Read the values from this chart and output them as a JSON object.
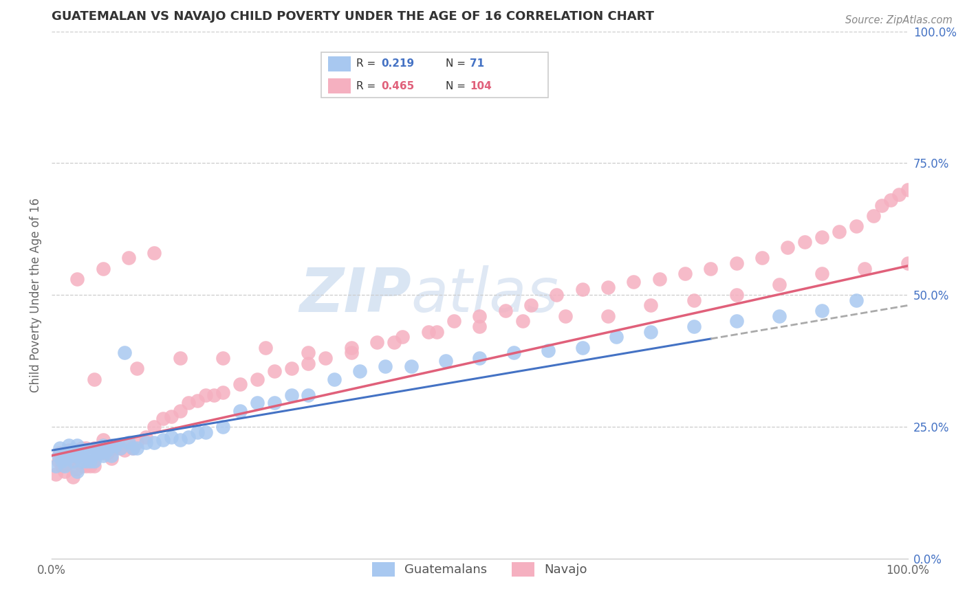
{
  "title": "GUATEMALAN VS NAVAJO CHILD POVERTY UNDER THE AGE OF 16 CORRELATION CHART",
  "source": "Source: ZipAtlas.com",
  "ylabel": "Child Poverty Under the Age of 16",
  "xlim": [
    0.0,
    1.0
  ],
  "ylim": [
    0.0,
    1.0
  ],
  "guatemalan_color": "#a8c8f0",
  "navajo_color": "#f5b0c0",
  "guatemalan_line_color": "#4472c4",
  "navajo_line_color": "#e0607a",
  "dashed_line_color": "#aaaaaa",
  "watermark_color": "#d0dff0",
  "legend_R_guatemalan": "0.219",
  "legend_N_guatemalan": "71",
  "legend_R_navajo": "0.465",
  "legend_N_navajo": "104",
  "title_fontsize": 13,
  "tick_fontsize": 12,
  "ylabel_fontsize": 12,
  "guatemalan_points_x": [
    0.005,
    0.008,
    0.01,
    0.012,
    0.015,
    0.015,
    0.018,
    0.02,
    0.02,
    0.022,
    0.025,
    0.025,
    0.028,
    0.03,
    0.03,
    0.03,
    0.032,
    0.035,
    0.035,
    0.038,
    0.04,
    0.04,
    0.042,
    0.045,
    0.045,
    0.048,
    0.05,
    0.05,
    0.055,
    0.058,
    0.06,
    0.06,
    0.065,
    0.07,
    0.07,
    0.075,
    0.08,
    0.085,
    0.09,
    0.095,
    0.1,
    0.11,
    0.12,
    0.13,
    0.14,
    0.15,
    0.16,
    0.17,
    0.18,
    0.2,
    0.22,
    0.24,
    0.26,
    0.28,
    0.3,
    0.33,
    0.36,
    0.39,
    0.42,
    0.46,
    0.5,
    0.54,
    0.58,
    0.62,
    0.66,
    0.7,
    0.75,
    0.8,
    0.85,
    0.9,
    0.94
  ],
  "guatemalan_points_y": [
    0.175,
    0.195,
    0.21,
    0.185,
    0.175,
    0.2,
    0.19,
    0.2,
    0.215,
    0.195,
    0.185,
    0.205,
    0.195,
    0.165,
    0.195,
    0.215,
    0.195,
    0.185,
    0.205,
    0.195,
    0.185,
    0.205,
    0.195,
    0.185,
    0.205,
    0.195,
    0.185,
    0.205,
    0.2,
    0.2,
    0.195,
    0.215,
    0.205,
    0.195,
    0.215,
    0.215,
    0.21,
    0.39,
    0.22,
    0.21,
    0.21,
    0.22,
    0.22,
    0.225,
    0.23,
    0.225,
    0.23,
    0.24,
    0.24,
    0.25,
    0.28,
    0.295,
    0.295,
    0.31,
    0.31,
    0.34,
    0.355,
    0.365,
    0.365,
    0.375,
    0.38,
    0.39,
    0.395,
    0.4,
    0.42,
    0.43,
    0.44,
    0.45,
    0.46,
    0.47,
    0.49
  ],
  "navajo_points_x": [
    0.005,
    0.008,
    0.01,
    0.012,
    0.015,
    0.015,
    0.018,
    0.02,
    0.02,
    0.022,
    0.025,
    0.025,
    0.028,
    0.03,
    0.03,
    0.032,
    0.035,
    0.035,
    0.038,
    0.04,
    0.04,
    0.042,
    0.045,
    0.048,
    0.05,
    0.05,
    0.055,
    0.06,
    0.06,
    0.065,
    0.07,
    0.075,
    0.08,
    0.085,
    0.09,
    0.095,
    0.1,
    0.11,
    0.12,
    0.13,
    0.14,
    0.15,
    0.16,
    0.17,
    0.18,
    0.19,
    0.2,
    0.22,
    0.24,
    0.26,
    0.28,
    0.3,
    0.32,
    0.35,
    0.38,
    0.41,
    0.44,
    0.47,
    0.5,
    0.53,
    0.56,
    0.59,
    0.62,
    0.65,
    0.68,
    0.71,
    0.74,
    0.77,
    0.8,
    0.83,
    0.86,
    0.88,
    0.9,
    0.92,
    0.94,
    0.96,
    0.97,
    0.98,
    0.99,
    1.0,
    0.05,
    0.1,
    0.15,
    0.2,
    0.25,
    0.3,
    0.35,
    0.4,
    0.45,
    0.5,
    0.55,
    0.6,
    0.65,
    0.7,
    0.75,
    0.8,
    0.85,
    0.9,
    0.95,
    1.0,
    0.03,
    0.06,
    0.09,
    0.12
  ],
  "navajo_points_y": [
    0.16,
    0.185,
    0.2,
    0.175,
    0.165,
    0.195,
    0.18,
    0.19,
    0.205,
    0.185,
    0.155,
    0.195,
    0.185,
    0.17,
    0.205,
    0.185,
    0.175,
    0.21,
    0.185,
    0.175,
    0.21,
    0.185,
    0.175,
    0.185,
    0.175,
    0.21,
    0.2,
    0.2,
    0.225,
    0.2,
    0.19,
    0.21,
    0.21,
    0.205,
    0.215,
    0.21,
    0.22,
    0.23,
    0.25,
    0.265,
    0.27,
    0.28,
    0.295,
    0.3,
    0.31,
    0.31,
    0.315,
    0.33,
    0.34,
    0.355,
    0.36,
    0.37,
    0.38,
    0.39,
    0.41,
    0.42,
    0.43,
    0.45,
    0.46,
    0.47,
    0.48,
    0.5,
    0.51,
    0.515,
    0.525,
    0.53,
    0.54,
    0.55,
    0.56,
    0.57,
    0.59,
    0.6,
    0.61,
    0.62,
    0.63,
    0.65,
    0.67,
    0.68,
    0.69,
    0.7,
    0.34,
    0.36,
    0.38,
    0.38,
    0.4,
    0.39,
    0.4,
    0.41,
    0.43,
    0.44,
    0.45,
    0.46,
    0.46,
    0.48,
    0.49,
    0.5,
    0.52,
    0.54,
    0.55,
    0.56,
    0.53,
    0.55,
    0.57,
    0.58
  ]
}
